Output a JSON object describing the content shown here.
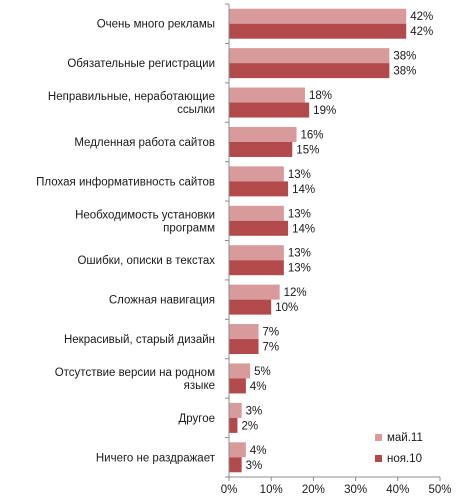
{
  "chart_data": {
    "type": "bar",
    "orientation": "horizontal",
    "categories": [
      [
        "Очень много рекламы"
      ],
      [
        "Обязательные регистрации"
      ],
      [
        "Неправильные, неработающие",
        "ссылки"
      ],
      [
        "Медленная работа сайтов"
      ],
      [
        "Плохая информативность сайтов"
      ],
      [
        "Необходимость установки",
        "программ"
      ],
      [
        "Ошибки, описки в текстах"
      ],
      [
        "Сложная навигация"
      ],
      [
        "Некрасивый, старый дизайн"
      ],
      [
        "Отсутствие версии на родном",
        "языке"
      ],
      [
        "Другое"
      ],
      [
        "Ничего не раздражает"
      ]
    ],
    "series": [
      {
        "name": "май.11",
        "color": "#d89a9a",
        "values": [
          42,
          38,
          18,
          16,
          13,
          13,
          13,
          12,
          7,
          5,
          3,
          4
        ]
      },
      {
        "name": "ноя.10",
        "color": "#b24a4c",
        "values": [
          42,
          38,
          19,
          15,
          14,
          14,
          13,
          10,
          7,
          4,
          2,
          3
        ]
      }
    ],
    "value_suffix": "%",
    "xlim": [
      0,
      50
    ],
    "xticks": [
      0,
      10,
      20,
      30,
      40,
      50
    ],
    "xtick_labels": [
      "0%",
      "10%",
      "20%",
      "30%",
      "40%",
      "50%"
    ],
    "grid": false,
    "legend_position": "bottom-right"
  }
}
